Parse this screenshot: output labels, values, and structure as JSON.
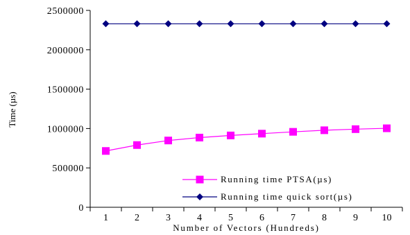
{
  "chart_data": {
    "type": "line",
    "xlabel": "Number of Vectors (Hundreds)",
    "ylabel": "Time (µs)",
    "x": [
      1,
      2,
      3,
      4,
      5,
      6,
      7,
      8,
      9,
      10
    ],
    "x_tick_labels": [
      "1",
      "2",
      "3",
      "4",
      "5",
      "6",
      "7",
      "8",
      "9",
      "10"
    ],
    "ylim": [
      0,
      2500000
    ],
    "y_ticks": [
      0,
      500000,
      1000000,
      1500000,
      2000000,
      2500000
    ],
    "y_tick_labels": [
      "0",
      "500000",
      "1000000",
      "1500000",
      "2000000",
      "2500000"
    ],
    "grid": false,
    "legend_position": "bottom-right",
    "series": [
      {
        "name": "Running time  PTSA(µs)",
        "color": "#ff00ff",
        "marker": "square",
        "values": [
          715000,
          790000,
          848000,
          885000,
          912000,
          935000,
          958000,
          978000,
          992000,
          1003000
        ]
      },
      {
        "name": "Running time  quick sort(µs)",
        "color": "#000080",
        "marker": "diamond",
        "values": [
          2330000,
          2330000,
          2330000,
          2330000,
          2330000,
          2330000,
          2330000,
          2330000,
          2330000,
          2330000
        ]
      }
    ]
  }
}
